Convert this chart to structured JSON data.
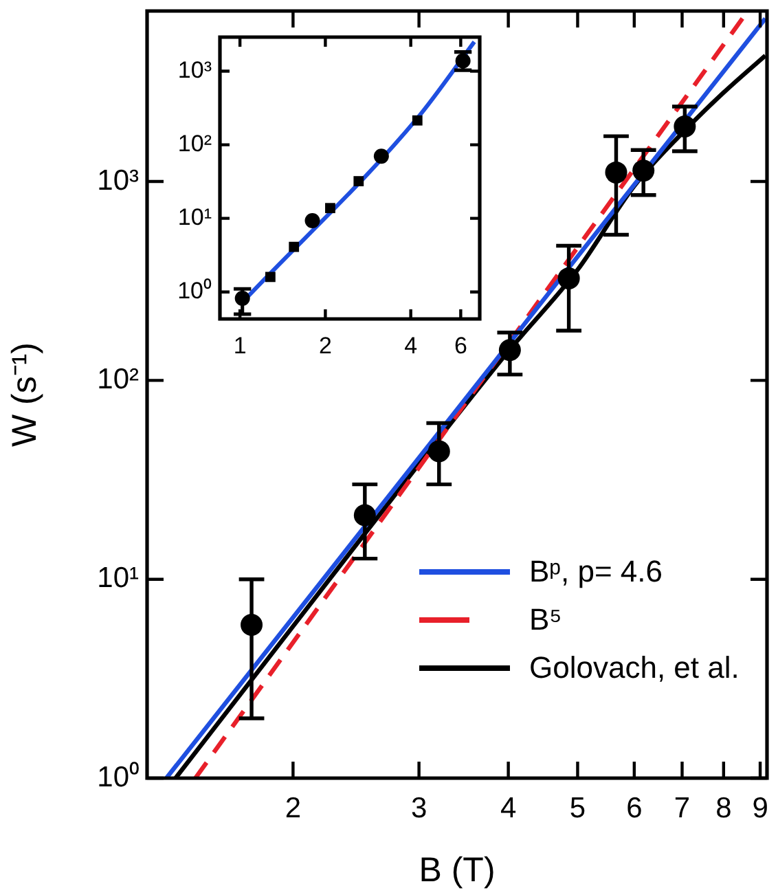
{
  "chart_data": [
    {
      "type": "scatter",
      "xlabel": "B (T)",
      "ylabel": "W (s⁻¹)",
      "log": "xy",
      "grid": false,
      "legend": "right",
      "xlim": [
        1.25,
        9.2
      ],
      "xticks": [
        2,
        3,
        4,
        5,
        6,
        7,
        8,
        9
      ],
      "ylim": [
        1,
        7200
      ],
      "yticks": [
        {
          "value": 1,
          "label": "10⁰"
        },
        {
          "value": 10,
          "label": "10¹"
        },
        {
          "value": 100,
          "label": "10²"
        },
        {
          "value": 1000,
          "label": "10³"
        }
      ],
      "series": [
        {
          "type": "line",
          "name": "Bᵖ, p= 4.6",
          "color": "#1f4fe0",
          "line_style": "solid",
          "marker": "none",
          "x": [
            1.33,
            9.15
          ],
          "values": [
            1,
            6600
          ]
        },
        {
          "type": "line",
          "name": "B⁵",
          "color": "#e8202a",
          "line_style": "dashed",
          "marker": "none",
          "x": [
            1.46,
            8.65
          ],
          "values": [
            1,
            7200
          ]
        },
        {
          "type": "line",
          "name": "Golovach, et al.",
          "color": "#000000",
          "line_style": "solid",
          "marker": "none",
          "x": [
            1.37,
            2,
            3,
            4,
            5,
            6,
            7,
            8,
            9.15
          ],
          "values": [
            1,
            5.8,
            38,
            140,
            360,
            950,
            1750,
            2800,
            4300
          ]
        },
        {
          "type": "scatter",
          "color": "#000000",
          "marker": "circle",
          "x": [
            1.75,
            2.52,
            3.2,
            4.02,
            4.86,
            5.66,
            6.18,
            7.06
          ],
          "values": [
            5.9,
            21,
            44,
            142,
            326,
            1110,
            1135,
            1890
          ],
          "errors": [
            [
              2,
              10
            ],
            [
              12.7,
              30
            ],
            [
              30,
              61
            ],
            [
              107,
              174
            ],
            [
              178,
              475
            ],
            [
              540,
              1690
            ],
            [
              855,
              1440
            ],
            [
              1420,
              2380
            ]
          ]
        }
      ]
    },
    {
      "type": "scatter",
      "log": "xy",
      "grid": false,
      "xlim": [
        0.85,
        7
      ],
      "xticks": [
        1,
        2,
        4,
        6
      ],
      "ylim": [
        0.43,
        2900
      ],
      "yticks": [
        {
          "value": 1,
          "label": "10⁰"
        },
        {
          "value": 10,
          "label": "10¹"
        },
        {
          "value": 100,
          "label": "10²"
        },
        {
          "value": 1000,
          "label": "10³"
        }
      ],
      "series": [
        {
          "type": "line",
          "color": "#1f4fe0",
          "line_style": "solid",
          "marker": "none",
          "x": [
            1.07,
            4.22,
            6.7
          ],
          "values": [
            0.88,
            230,
            2500
          ]
        },
        {
          "type": "scatter",
          "color": "#000000",
          "marker": "circle",
          "x": [
            1.02,
            1.8,
            3.15,
            6.11
          ],
          "values": [
            0.82,
            9.3,
            70,
            1380
          ],
          "errors": [
            [
              0.5,
              1.1
            ],
            null,
            null,
            [
              1030,
              1820
            ]
          ]
        },
        {
          "type": "scatter",
          "color": "#000000",
          "marker": "square",
          "x": [
            1.28,
            1.55,
            2.08,
            2.62,
            4.22
          ],
          "values": [
            1.6,
            4.1,
            13.8,
            32,
            214
          ]
        }
      ]
    }
  ]
}
